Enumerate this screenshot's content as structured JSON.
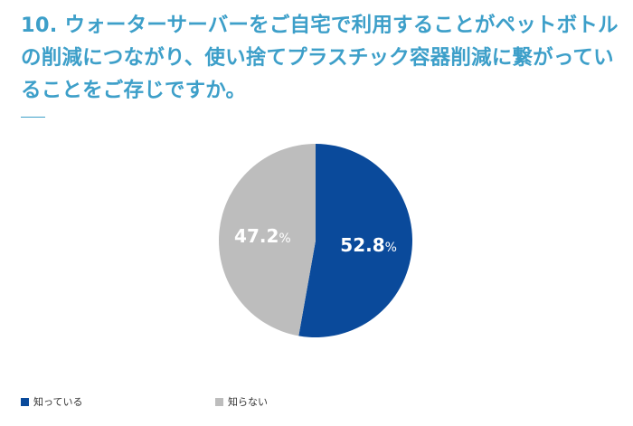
{
  "question": {
    "title": "10. ウォーターサーバーをご自宅で利用することがペットボトルの削減につながり、使い捨てプラスチック容器削減に繋がっていることをご存じですか。"
  },
  "colors": {
    "title": "#3d9fc9",
    "slice_know": "#0a4a9b",
    "slice_dont_know": "#bdbdbd"
  },
  "chart_data": {
    "type": "pie",
    "slices": [
      {
        "label": "知っている",
        "value": 52.8,
        "display": "52.8",
        "unit": "%",
        "color": "#0a4a9b"
      },
      {
        "label": "知らない",
        "value": 47.2,
        "display": "47.2",
        "unit": "%",
        "color": "#bdbdbd"
      }
    ],
    "start_angle": "12 o'clock",
    "direction": "clockwise",
    "legend_position": "bottom-left"
  }
}
